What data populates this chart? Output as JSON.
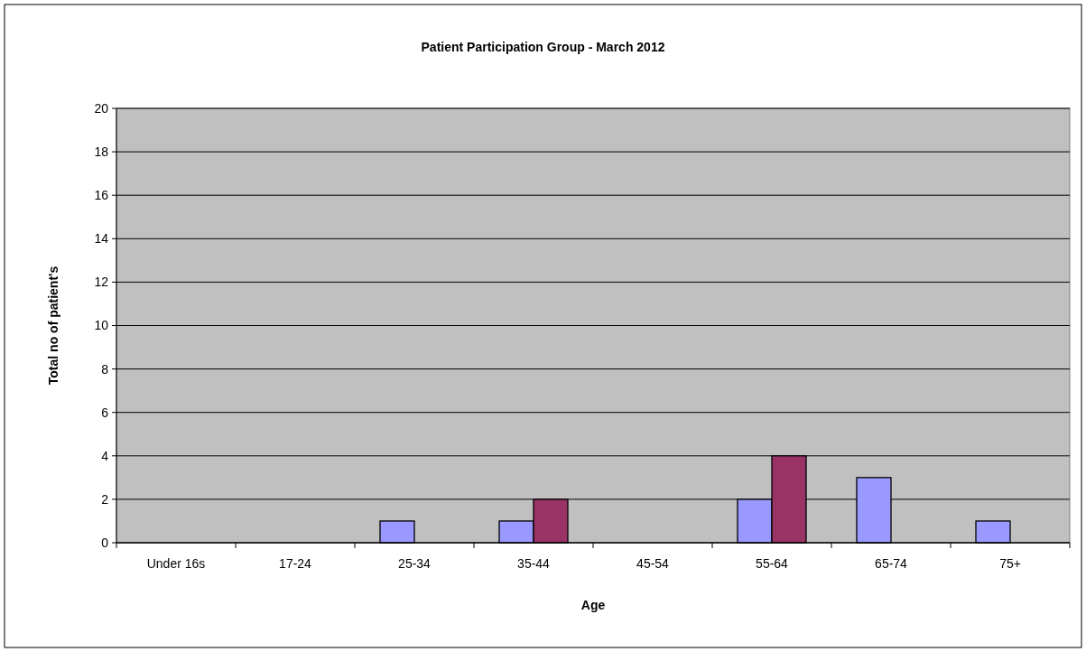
{
  "chart_data": {
    "type": "bar",
    "title": "Patient Participation Group - March 2012",
    "xlabel": "Age",
    "ylabel": "Total no of patient's",
    "categories": [
      "Under 16s",
      "17-24",
      "25-34",
      "35-44",
      "45-54",
      "55-64",
      "65-74",
      "75+"
    ],
    "series": [
      {
        "color": "#9999ff",
        "values": [
          0,
          0,
          1,
          1,
          0,
          2,
          3,
          1
        ]
      },
      {
        "color": "#993366",
        "values": [
          0,
          0,
          0,
          2,
          0,
          4,
          0,
          0
        ]
      }
    ],
    "ylim": [
      0,
      20
    ],
    "yticks": [
      0,
      2,
      4,
      6,
      8,
      10,
      12,
      14,
      16,
      18,
      20
    ],
    "grid": "y"
  }
}
